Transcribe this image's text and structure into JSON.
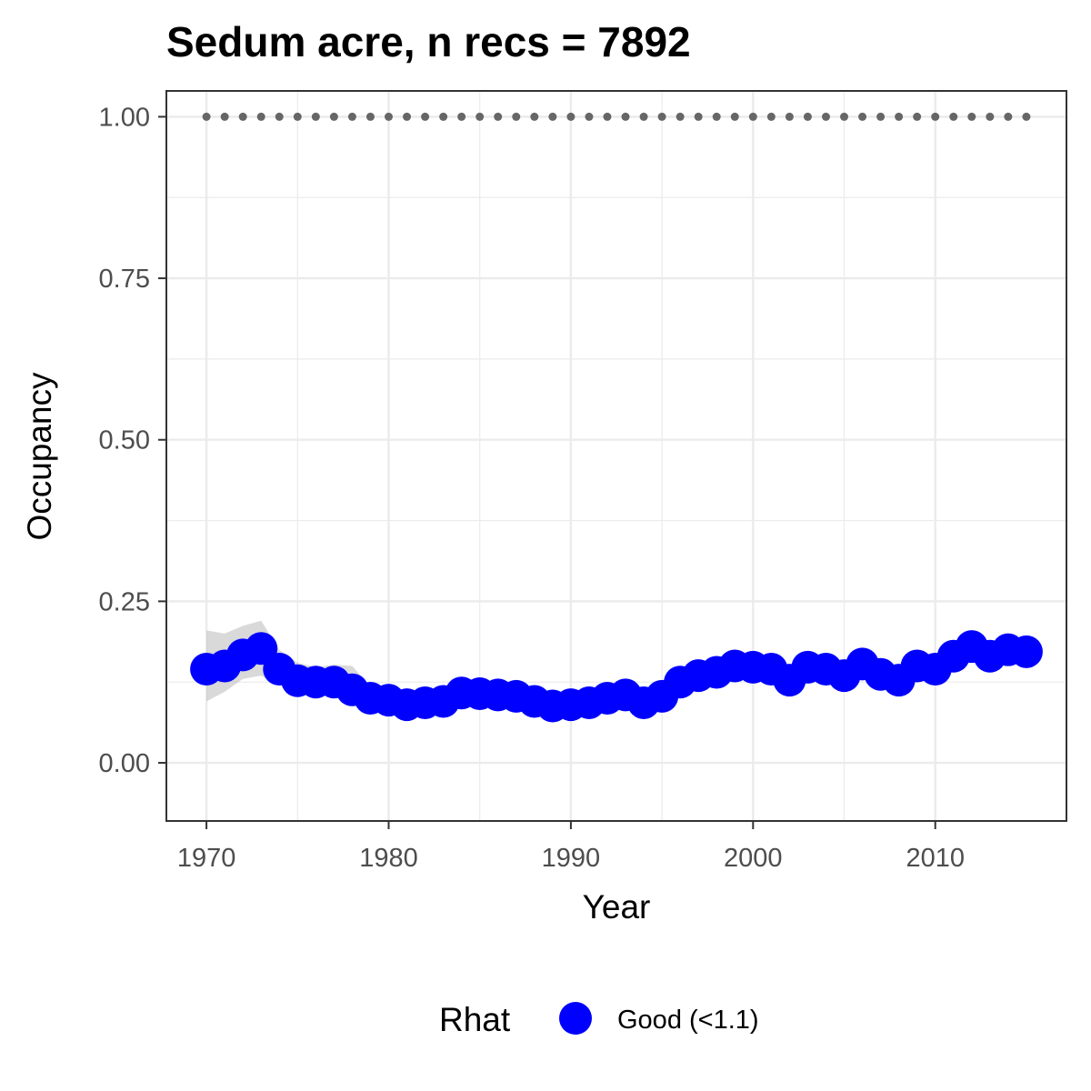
{
  "chart_data": {
    "type": "line",
    "title": "Sedum acre, n recs = 7892",
    "xlabel": "Year",
    "ylabel": "Occupancy",
    "xlim": [
      1967.8,
      2017.2
    ],
    "ylim": [
      -0.09,
      1.04
    ],
    "xticks": [
      1970,
      1980,
      1990,
      2000,
      2010
    ],
    "xtick_labels": [
      "1970",
      "1980",
      "1990",
      "2000",
      "2010"
    ],
    "yticks": [
      0,
      0.25,
      0.5,
      0.75,
      1
    ],
    "ytick_labels": [
      "0.00",
      "0.25",
      "0.50",
      "0.75",
      "1.00"
    ],
    "grid": true,
    "legend_position": "bottom",
    "legend": {
      "title": "Rhat",
      "entries": [
        {
          "label": "Good (<1.1)",
          "color": "#0000ff"
        }
      ]
    },
    "colors": {
      "points": "#0000ff",
      "ribbon": "#bfbfbf",
      "reference_dots": "#666666"
    },
    "x": [
      1970,
      1971,
      1972,
      1973,
      1974,
      1975,
      1976,
      1977,
      1978,
      1979,
      1980,
      1981,
      1982,
      1983,
      1984,
      1985,
      1986,
      1987,
      1988,
      1989,
      1990,
      1991,
      1992,
      1993,
      1994,
      1995,
      1996,
      1997,
      1998,
      1999,
      2000,
      2001,
      2002,
      2003,
      2004,
      2005,
      2006,
      2007,
      2008,
      2009,
      2010,
      2011,
      2012,
      2013,
      2014,
      2015
    ],
    "series": [
      {
        "values": [
          0.145,
          0.15,
          0.167,
          0.177,
          0.145,
          0.127,
          0.125,
          0.125,
          0.113,
          0.1,
          0.097,
          0.09,
          0.093,
          0.095,
          0.108,
          0.107,
          0.105,
          0.103,
          0.095,
          0.088,
          0.09,
          0.093,
          0.1,
          0.105,
          0.093,
          0.103,
          0.125,
          0.135,
          0.14,
          0.15,
          0.148,
          0.145,
          0.128,
          0.148,
          0.145,
          0.135,
          0.153,
          0.137,
          0.128,
          0.15,
          0.145,
          0.165,
          0.18,
          0.165,
          0.175,
          0.172
        ],
        "lower": [
          0.095,
          0.11,
          0.13,
          0.135,
          0.12,
          0.11,
          0.108,
          0.108,
          0.098,
          0.088,
          0.085,
          0.08,
          0.082,
          0.085,
          0.097,
          0.097,
          0.095,
          0.093,
          0.086,
          0.08,
          0.081,
          0.084,
          0.09,
          0.095,
          0.084,
          0.093,
          0.114,
          0.124,
          0.129,
          0.138,
          0.136,
          0.133,
          0.117,
          0.136,
          0.133,
          0.124,
          0.141,
          0.126,
          0.117,
          0.138,
          0.133,
          0.152,
          0.166,
          0.152,
          0.162,
          0.16
        ],
        "upper": [
          0.205,
          0.2,
          0.212,
          0.22,
          0.175,
          0.155,
          0.148,
          0.152,
          0.15,
          0.118,
          0.11,
          0.102,
          0.105,
          0.107,
          0.12,
          0.118,
          0.116,
          0.114,
          0.105,
          0.097,
          0.099,
          0.103,
          0.11,
          0.116,
          0.103,
          0.114,
          0.137,
          0.147,
          0.152,
          0.162,
          0.16,
          0.157,
          0.14,
          0.16,
          0.157,
          0.147,
          0.166,
          0.149,
          0.14,
          0.162,
          0.157,
          0.178,
          0.194,
          0.178,
          0.189,
          0.186
        ]
      }
    ],
    "reference_line": {
      "y": 1.0,
      "style": "dotted"
    }
  }
}
